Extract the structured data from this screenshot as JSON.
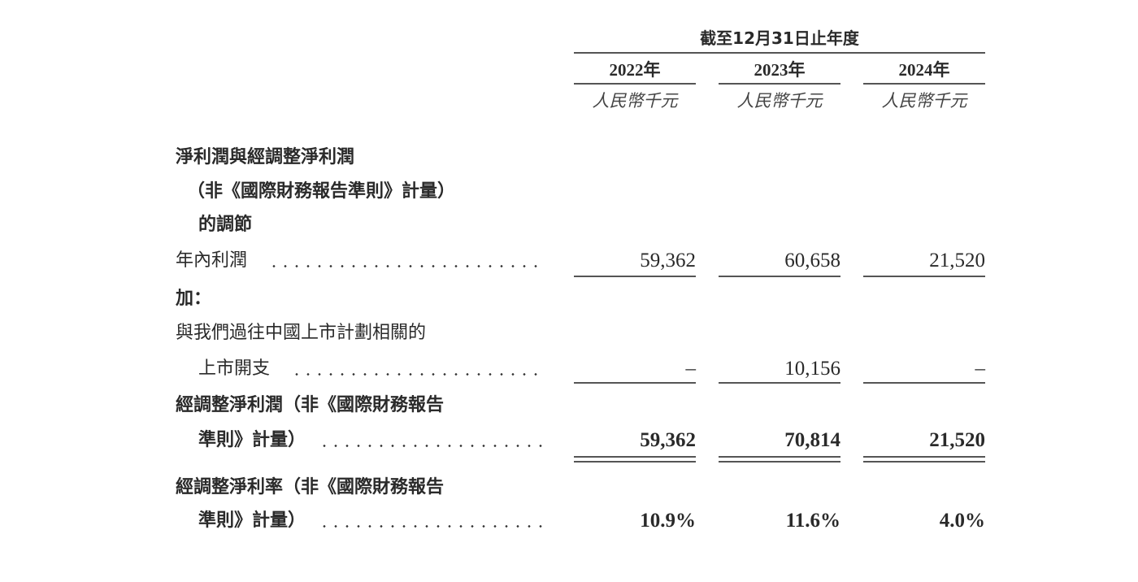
{
  "header": {
    "period": "截至12月31日止年度",
    "years": [
      "2022年",
      "2023年",
      "2024年"
    ],
    "unit": "人民幣千元"
  },
  "rows": {
    "section_title": [
      "淨利潤與經調整淨利潤",
      "（非《國際財務報告準則》計量）",
      "的調節"
    ],
    "profit": {
      "label": "年內利潤",
      "values": [
        "59,362",
        "60,658",
        "21,520"
      ]
    },
    "add": {
      "label": "加："
    },
    "listing": {
      "label": [
        "與我們過往中國上市計劃相關的",
        "上市開支"
      ],
      "values": [
        "–",
        "10,156",
        "–"
      ]
    },
    "adj_profit": {
      "label": [
        "經調整淨利潤（非《國際財務報告",
        "準則》計量）"
      ],
      "values": [
        "59,362",
        "70,814",
        "21,520"
      ]
    },
    "adj_margin": {
      "label": [
        "經調整淨利率（非《國際財務報告",
        "準則》計量）"
      ],
      "values": [
        "10.9%",
        "11.6%",
        "4.0%"
      ]
    }
  }
}
